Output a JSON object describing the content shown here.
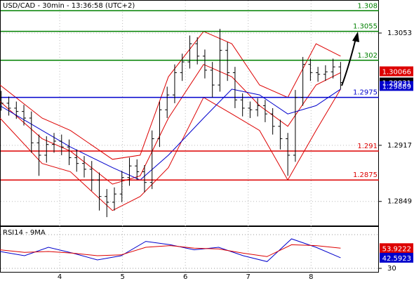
{
  "chart_data": [
    {
      "type": "ohlc",
      "title": "USD/CAD - 30min - 13:36:58 (UTC+2)",
      "xlim": [
        3.05,
        9.08
      ],
      "xticks": [
        4,
        5,
        6,
        7,
        8
      ],
      "ylim": [
        1.2819,
        1.3093
      ],
      "yticks": [
        1.2849,
        1.2917,
        1.3053
      ],
      "grid": true,
      "bar_color": "#000000",
      "x": [
        3.07,
        3.19,
        3.31,
        3.43,
        3.55,
        3.67,
        3.79,
        3.91,
        4.03,
        4.15,
        4.27,
        4.39,
        4.51,
        4.63,
        4.75,
        4.87,
        4.99,
        5.11,
        5.23,
        5.35,
        5.47,
        5.59,
        5.71,
        5.83,
        5.95,
        6.07,
        6.19,
        6.31,
        6.43,
        6.55,
        6.67,
        6.79,
        6.91,
        7.03,
        7.15,
        7.27,
        7.39,
        7.51,
        7.63,
        7.75,
        7.87,
        7.99,
        8.11,
        8.23,
        8.35,
        8.47
      ],
      "open": [
        1.2975,
        1.2968,
        1.2962,
        1.2958,
        1.295,
        1.292,
        1.2905,
        1.2918,
        1.2922,
        1.2915,
        1.2902,
        1.2895,
        1.2888,
        1.2875,
        1.2855,
        1.2848,
        1.2858,
        1.2878,
        1.2892,
        1.2885,
        1.2872,
        1.2925,
        1.296,
        1.2978,
        1.3005,
        1.3018,
        1.304,
        1.3025,
        1.3008,
        1.299,
        1.3032,
        1.3005,
        1.2972,
        1.2962,
        1.296,
        1.2965,
        1.2955,
        1.294,
        1.2925,
        1.2905,
        1.2975,
        1.3015,
        1.3005,
        1.3003,
        1.3006,
        1.3012
      ],
      "high": [
        1.2983,
        1.2976,
        1.297,
        1.2966,
        1.2958,
        1.293,
        1.2928,
        1.2932,
        1.293,
        1.2924,
        1.2912,
        1.2904,
        1.2898,
        1.2884,
        1.2864,
        1.2866,
        1.2886,
        1.2902,
        1.29,
        1.2893,
        1.2935,
        1.297,
        1.2988,
        1.3015,
        1.3028,
        1.305,
        1.3048,
        1.3033,
        1.3018,
        1.3058,
        1.3042,
        1.3012,
        1.298,
        1.297,
        1.2974,
        1.2972,
        1.2962,
        1.2948,
        1.2932,
        1.2984,
        1.3024,
        1.3022,
        1.3012,
        1.3014,
        1.3022,
        1.3018
      ],
      "low": [
        1.2959,
        1.2953,
        1.2949,
        1.2941,
        1.2908,
        1.288,
        1.2896,
        1.2908,
        1.2905,
        1.2893,
        1.2885,
        1.2878,
        1.2862,
        1.2838,
        1.283,
        1.2838,
        1.2848,
        1.2868,
        1.2875,
        1.286,
        1.2864,
        1.2915,
        1.295,
        1.2968,
        1.2995,
        1.301,
        1.3015,
        1.2998,
        1.2975,
        1.2982,
        1.2995,
        1.2962,
        1.2952,
        1.295,
        1.2952,
        1.2945,
        1.293,
        1.2912,
        1.288,
        1.2897,
        1.2965,
        1.2995,
        1.2994,
        1.2995,
        1.2998,
        1.2985
      ],
      "close": [
        1.2968,
        1.2962,
        1.2958,
        1.295,
        1.292,
        1.2905,
        1.2918,
        1.2922,
        1.2915,
        1.2902,
        1.2895,
        1.2888,
        1.2875,
        1.2855,
        1.2848,
        1.2858,
        1.2878,
        1.2892,
        1.2885,
        1.2872,
        1.2925,
        1.296,
        1.2978,
        1.3005,
        1.3018,
        1.304,
        1.3025,
        1.3008,
        1.299,
        1.3032,
        1.3005,
        1.2972,
        1.2962,
        1.296,
        1.2965,
        1.2955,
        1.294,
        1.2925,
        1.2905,
        1.2975,
        1.3015,
        1.3005,
        1.3003,
        1.3006,
        1.3012,
        1.2993
      ],
      "lines": [
        {
          "color": "#dd0000",
          "x": [
            3.05,
            3.72,
            4.17,
            4.84,
            5.28,
            5.73,
            6.29,
            6.74,
            7.18,
            7.63,
            8.08,
            8.47
          ],
          "values": [
            1.299,
            1.295,
            1.2935,
            1.29,
            1.2905,
            1.3,
            1.3055,
            1.304,
            1.299,
            1.2975,
            1.304,
            1.3025
          ]
        },
        {
          "color": "#dd0000",
          "x": [
            3.05,
            3.72,
            4.17,
            4.84,
            5.28,
            5.73,
            6.29,
            6.74,
            7.18,
            7.63,
            8.08,
            8.47
          ],
          "values": [
            1.297,
            1.2925,
            1.291,
            1.287,
            1.288,
            1.295,
            1.3015,
            1.3,
            1.2965,
            1.294,
            1.299,
            1.3005
          ]
        },
        {
          "color": "#dd0000",
          "x": [
            3.05,
            3.72,
            4.17,
            4.84,
            5.28,
            5.73,
            6.29,
            6.74,
            7.18,
            7.63,
            8.08,
            8.47
          ],
          "values": [
            1.295,
            1.2895,
            1.2885,
            1.2838,
            1.2855,
            1.289,
            1.2975,
            1.2955,
            1.2935,
            1.2875,
            1.2935,
            1.2985
          ]
        },
        {
          "color": "#0000cc",
          "x": [
            3.05,
            3.72,
            4.17,
            4.84,
            5.28,
            5.73,
            6.29,
            6.74,
            7.18,
            7.63,
            8.08,
            8.47
          ],
          "values": [
            1.2965,
            1.2935,
            1.2915,
            1.289,
            1.2875,
            1.2905,
            1.295,
            1.2985,
            1.2978,
            1.2955,
            1.2965,
            1.2985
          ]
        }
      ],
      "levels": [
        {
          "value": 1.308,
          "color": "#008000"
        },
        {
          "value": 1.3055,
          "color": "#008000"
        },
        {
          "value": 1.302,
          "color": "#008000"
        },
        {
          "value": 1.2975,
          "color": "#0000cc"
        },
        {
          "value": 1.291,
          "color": "#dd0000"
        },
        {
          "value": 1.2875,
          "color": "#dd0000"
        }
      ],
      "price_tags": [
        {
          "value": 1.30066,
          "color": "#dd0000"
        },
        {
          "value": 1.29931,
          "color": "#000000"
        },
        {
          "value": 1.29889,
          "color": "#0000cc"
        }
      ]
    },
    {
      "type": "line",
      "title": "RSI14 - 9MA",
      "xlim": [
        3.05,
        9.08
      ],
      "ylim": [
        25,
        80
      ],
      "yticks": [
        30
      ],
      "guides": [
        70,
        30
      ],
      "series": [
        {
          "color": "#0000cc",
          "x": [
            3.05,
            3.44,
            3.82,
            4.21,
            4.6,
            4.98,
            5.37,
            5.76,
            6.14,
            6.53,
            6.92,
            7.3,
            7.69,
            8.08,
            8.47
          ],
          "values": [
            50,
            45,
            55,
            48,
            40,
            45,
            62,
            58,
            52,
            55,
            45,
            38,
            65,
            55,
            42.5923
          ]
        },
        {
          "color": "#dd0000",
          "x": [
            3.05,
            3.44,
            3.82,
            4.21,
            4.6,
            4.98,
            5.37,
            5.76,
            6.14,
            6.53,
            6.92,
            7.3,
            7.69,
            8.08,
            8.47
          ],
          "values": [
            52,
            49,
            50,
            48,
            45,
            46,
            55,
            57,
            54,
            53,
            48,
            44,
            58,
            57,
            53.9222
          ]
        }
      ],
      "price_tags": [
        {
          "value": 53.9222,
          "color": "#dd0000"
        },
        {
          "value": 42.5923,
          "color": "#0000cc"
        }
      ]
    }
  ]
}
